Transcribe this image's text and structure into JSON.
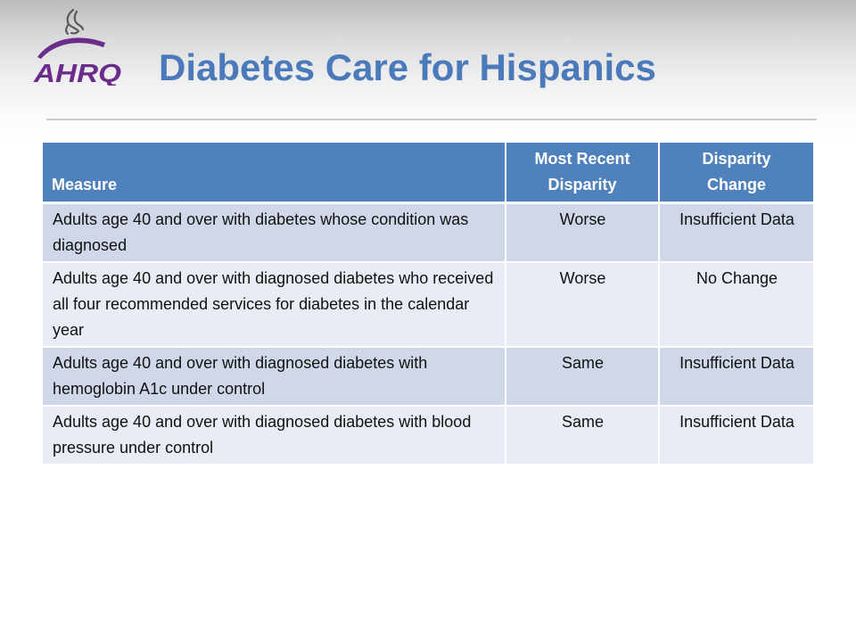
{
  "slide": {
    "title": "Diabetes Care for Hispanics",
    "logo": {
      "text": "AHRQ",
      "icon": "hhs-eagle-icon",
      "colors": {
        "purple": "#6b2c8a",
        "gray": "#5a5a5a"
      }
    }
  },
  "colors": {
    "title": "#4a7ab9",
    "header_fill": "#4f81bd",
    "row_odd": "#cfd7e8",
    "row_even": "#e8ecf4"
  },
  "table": {
    "headers": {
      "measure": "Measure",
      "recent": [
        "Most Recent",
        "Disparity"
      ],
      "change": [
        "Disparity",
        "Change"
      ]
    },
    "rows": [
      {
        "measure": "Adults age 40 and over with diabetes whose condition was diagnosed",
        "recent": "Worse",
        "change": "Insufficient Data"
      },
      {
        "measure": "Adults age 40 and over with diagnosed diabetes who received all four recommended services for diabetes in the calendar year",
        "recent": "Worse",
        "change": "No Change"
      },
      {
        "measure": "Adults age 40 and over with diagnosed diabetes with hemoglobin A1c under control",
        "recent": "Same",
        "change": "Insufficient Data"
      },
      {
        "measure": "Adults age 40 and over with diagnosed diabetes with blood pressure under control",
        "recent": "Same",
        "change": "Insufficient Data"
      }
    ]
  }
}
